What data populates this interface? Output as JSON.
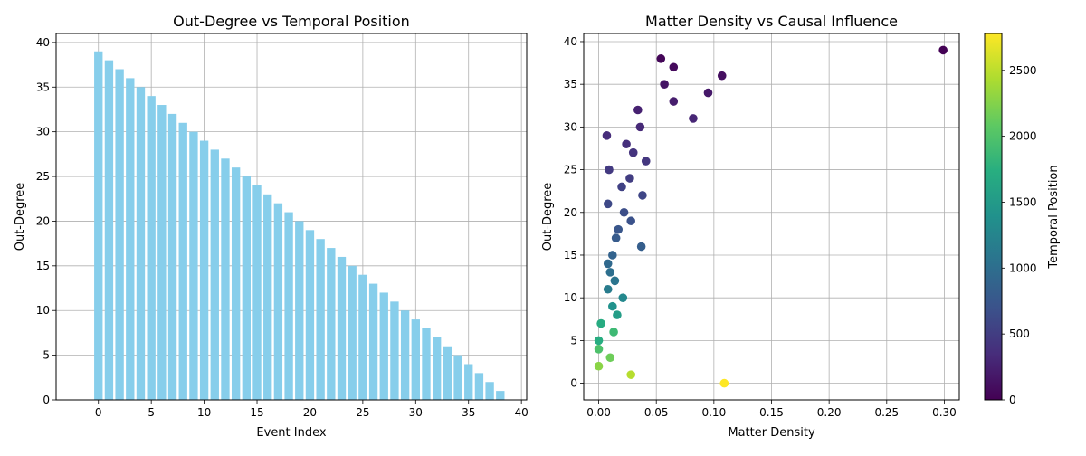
{
  "chart_data": [
    {
      "type": "bar",
      "title": "Out-Degree vs Temporal Position",
      "xlabel": "Event Index",
      "ylabel": "Out-Degree",
      "xlim": [
        -4,
        40.5
      ],
      "ylim": [
        0,
        41
      ],
      "xticks": [
        0,
        5,
        10,
        15,
        20,
        25,
        30,
        35,
        40
      ],
      "yticks": [
        0,
        5,
        10,
        15,
        20,
        25,
        30,
        35,
        40
      ],
      "grid": true,
      "bar_color": "#87ceeb",
      "categories": [
        0,
        1,
        2,
        3,
        4,
        5,
        6,
        7,
        8,
        9,
        10,
        11,
        12,
        13,
        14,
        15,
        16,
        17,
        18,
        19,
        20,
        21,
        22,
        23,
        24,
        25,
        26,
        27,
        28,
        29,
        30,
        31,
        32,
        33,
        34,
        35,
        36,
        37,
        38,
        39
      ],
      "values": [
        39,
        38,
        37,
        36,
        35,
        34,
        33,
        32,
        31,
        30,
        29,
        28,
        27,
        26,
        25,
        24,
        23,
        22,
        21,
        20,
        19,
        18,
        17,
        16,
        15,
        14,
        13,
        12,
        11,
        10,
        9,
        8,
        7,
        6,
        5,
        4,
        3,
        2,
        1,
        0
      ]
    },
    {
      "type": "scatter",
      "title": "Matter Density vs Causal Influence",
      "xlabel": "Matter Density",
      "ylabel": "Out-Degree",
      "xlim": [
        -0.013,
        0.313
      ],
      "ylim": [
        -1.95,
        40.95
      ],
      "xticks": [
        "0.00",
        "0.05",
        "0.10",
        "0.15",
        "0.20",
        "0.25",
        "0.30"
      ],
      "yticks": [
        0,
        5,
        10,
        15,
        20,
        25,
        30,
        35,
        40
      ],
      "grid": true,
      "colormap": "viridis",
      "colorbar": {
        "label": "Temporal Position",
        "range": [
          0,
          2780
        ],
        "ticks": [
          0,
          500,
          1000,
          1500,
          2000,
          2500
        ]
      },
      "points": [
        {
          "x": 0.299,
          "y": 39,
          "c": 5
        },
        {
          "x": 0.054,
          "y": 38,
          "c": 40
        },
        {
          "x": 0.065,
          "y": 37,
          "c": 75
        },
        {
          "x": 0.107,
          "y": 36,
          "c": 110
        },
        {
          "x": 0.057,
          "y": 35,
          "c": 150
        },
        {
          "x": 0.095,
          "y": 34,
          "c": 185
        },
        {
          "x": 0.065,
          "y": 33,
          "c": 220
        },
        {
          "x": 0.034,
          "y": 32,
          "c": 255
        },
        {
          "x": 0.082,
          "y": 31,
          "c": 290
        },
        {
          "x": 0.036,
          "y": 30,
          "c": 325
        },
        {
          "x": 0.007,
          "y": 29,
          "c": 345
        },
        {
          "x": 0.024,
          "y": 28,
          "c": 380
        },
        {
          "x": 0.03,
          "y": 27,
          "c": 410
        },
        {
          "x": 0.041,
          "y": 26,
          "c": 440
        },
        {
          "x": 0.009,
          "y": 25,
          "c": 470
        },
        {
          "x": 0.027,
          "y": 24,
          "c": 500
        },
        {
          "x": 0.02,
          "y": 23,
          "c": 540
        },
        {
          "x": 0.038,
          "y": 22,
          "c": 580
        },
        {
          "x": 0.008,
          "y": 21,
          "c": 610
        },
        {
          "x": 0.022,
          "y": 20,
          "c": 660
        },
        {
          "x": 0.028,
          "y": 19,
          "c": 700
        },
        {
          "x": 0.017,
          "y": 18,
          "c": 740
        },
        {
          "x": 0.015,
          "y": 17,
          "c": 790
        },
        {
          "x": 0.037,
          "y": 16,
          "c": 830
        },
        {
          "x": 0.012,
          "y": 15,
          "c": 880
        },
        {
          "x": 0.008,
          "y": 14,
          "c": 950
        },
        {
          "x": 0.01,
          "y": 13,
          "c": 1010
        },
        {
          "x": 0.014,
          "y": 12,
          "c": 1080
        },
        {
          "x": 0.008,
          "y": 11,
          "c": 1150
        },
        {
          "x": 0.021,
          "y": 10,
          "c": 1290
        },
        {
          "x": 0.012,
          "y": 9,
          "c": 1400
        },
        {
          "x": 0.016,
          "y": 8,
          "c": 1530
        },
        {
          "x": 0.002,
          "y": 7,
          "c": 1700
        },
        {
          "x": 0.013,
          "y": 6,
          "c": 1880
        },
        {
          "x": 0.0,
          "y": 5,
          "c": 1720
        },
        {
          "x": 0.0,
          "y": 4,
          "c": 1980
        },
        {
          "x": 0.01,
          "y": 3,
          "c": 2150
        },
        {
          "x": 0.0,
          "y": 2,
          "c": 2280
        },
        {
          "x": 0.028,
          "y": 1,
          "c": 2470
        },
        {
          "x": 0.109,
          "y": 0,
          "c": 2780
        }
      ]
    }
  ]
}
